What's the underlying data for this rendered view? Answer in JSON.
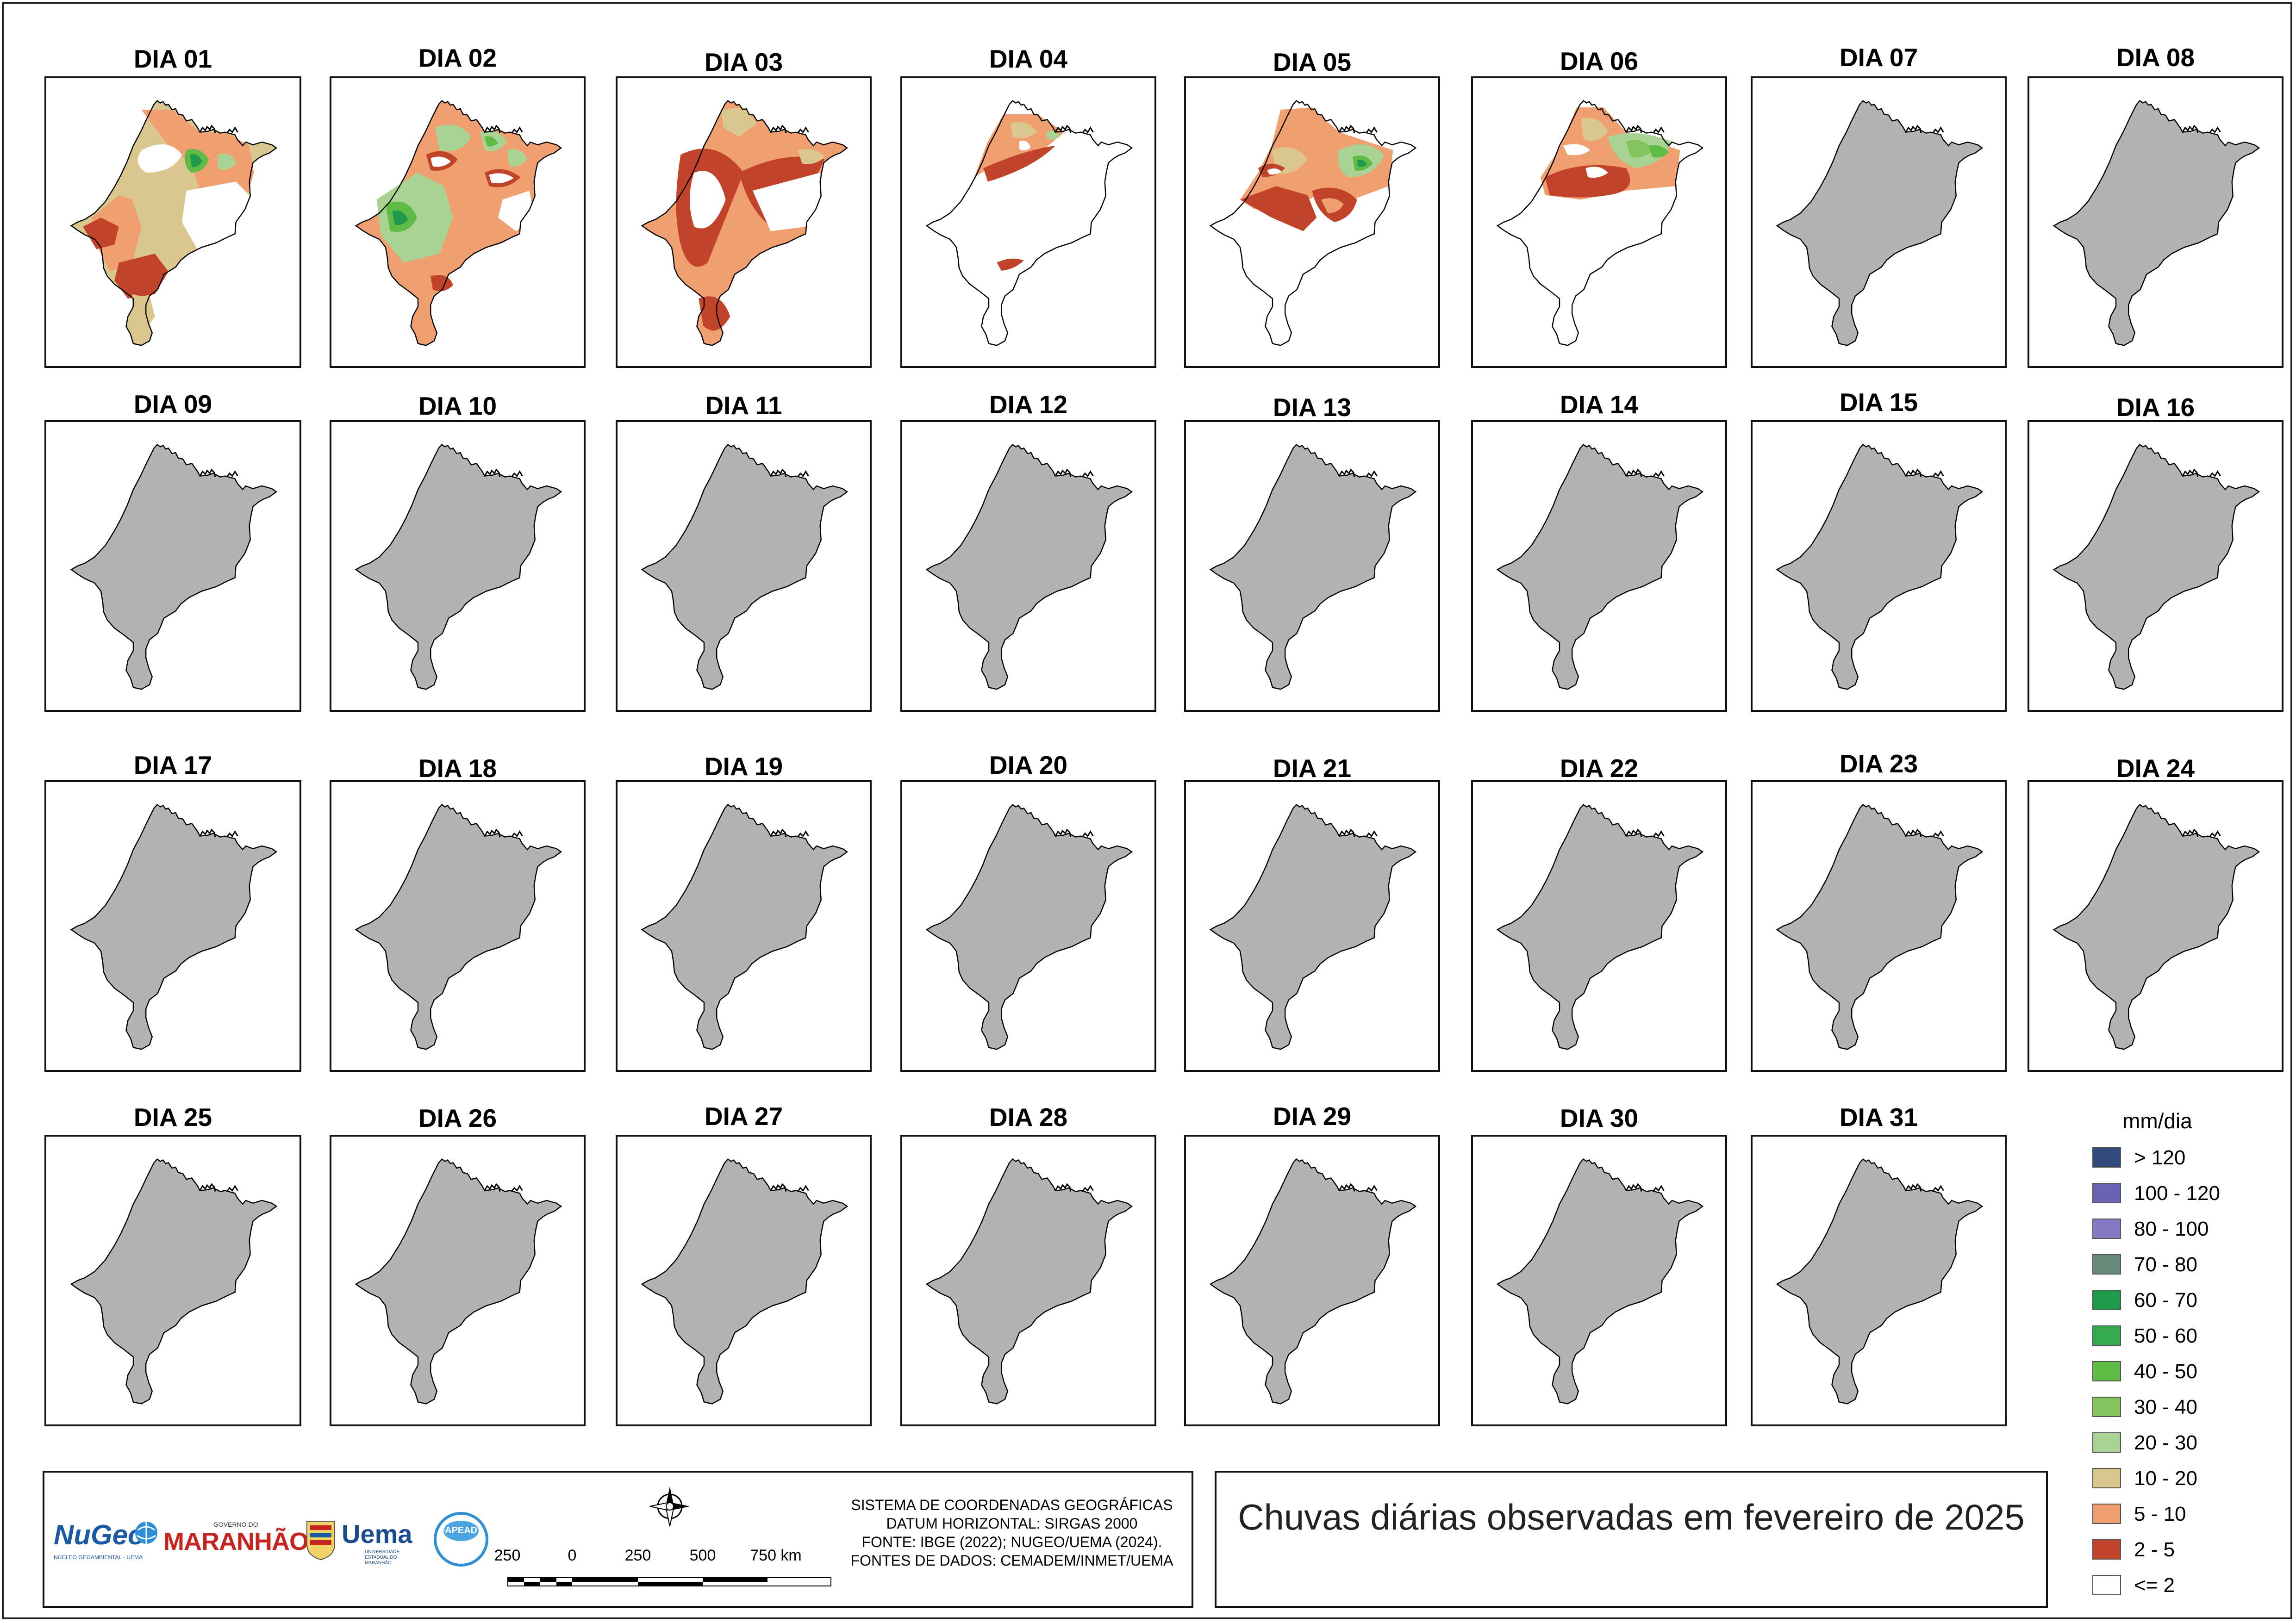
{
  "map": {
    "title": "Chuvas diárias observadas em fevereiro de 2025",
    "days": [
      {
        "label": "DIA 01",
        "rain": true
      },
      {
        "label": "DIA 02",
        "rain": true
      },
      {
        "label": "DIA 03",
        "rain": true
      },
      {
        "label": "DIA 04",
        "rain": true
      },
      {
        "label": "DIA 05",
        "rain": true
      },
      {
        "label": "DIA 06",
        "rain": true
      },
      {
        "label": "DIA 07",
        "rain": false
      },
      {
        "label": "DIA 08",
        "rain": false
      },
      {
        "label": "DIA 09",
        "rain": false
      },
      {
        "label": "DIA 10",
        "rain": false
      },
      {
        "label": "DIA 11",
        "rain": false
      },
      {
        "label": "DIA 12",
        "rain": false
      },
      {
        "label": "DIA 13",
        "rain": false
      },
      {
        "label": "DIA 14",
        "rain": false
      },
      {
        "label": "DIA 15",
        "rain": false
      },
      {
        "label": "DIA 16",
        "rain": false
      },
      {
        "label": "DIA 17",
        "rain": false
      },
      {
        "label": "DIA 18",
        "rain": false
      },
      {
        "label": "DIA 19",
        "rain": false
      },
      {
        "label": "DIA 20",
        "rain": false
      },
      {
        "label": "DIA 21",
        "rain": false
      },
      {
        "label": "DIA 22",
        "rain": false
      },
      {
        "label": "DIA 23",
        "rain": false
      },
      {
        "label": "DIA 24",
        "rain": false
      },
      {
        "label": "DIA 25",
        "rain": false
      },
      {
        "label": "DIA 26",
        "rain": false
      },
      {
        "label": "DIA 27",
        "rain": false
      },
      {
        "label": "DIA 28",
        "rain": false
      },
      {
        "label": "DIA 29",
        "rain": false
      },
      {
        "label": "DIA 30",
        "rain": false
      },
      {
        "label": "DIA 31",
        "rain": false
      }
    ]
  },
  "legend": {
    "title": "mm/dia",
    "items": [
      {
        "label": "> 120",
        "color": "#2f4a7d"
      },
      {
        "label": "100 - 120",
        "color": "#6a62b3"
      },
      {
        "label": "80 - 100",
        "color": "#8479c2"
      },
      {
        "label": "70 - 80",
        "color": "#6b8a7e"
      },
      {
        "label": "60 - 70",
        "color": "#1f9a4a"
      },
      {
        "label": "50 - 60",
        "color": "#34ad4e"
      },
      {
        "label": "40 - 50",
        "color": "#5fbb45"
      },
      {
        "label": "30 - 40",
        "color": "#86c45e"
      },
      {
        "label": "20 - 30",
        "color": "#a9d393"
      },
      {
        "label": "10 - 20",
        "color": "#d9c78e"
      },
      {
        "label": "5 - 10",
        "color": "#f0a070"
      },
      {
        "label": "2 - 5",
        "color": "#c1442a"
      },
      {
        "label": "<= 2",
        "color": "#ffffff"
      }
    ]
  },
  "footer": {
    "logos": {
      "nugeo": "NuGeo",
      "nugeo_sub": "NÚCLEO GEOAMBIENTAL - UEMA",
      "governo": "GOVERNO DO",
      "maranhao": "MARANHÃO",
      "uema": "Uema",
      "uema_sub": "UNIVERSIDADE ESTADUAL DO MARANHÃO",
      "fapead": "FAPEAD"
    },
    "datum_lines": [
      "SISTEMA DE COORDENADAS GEOGRÁFICAS",
      "DATUM HORIZONTAL: SIRGAS 2000",
      "FONTE: IBGE (2022); NUGEO/UEMA (2024).",
      "FONTES DE DADOS: CEMADEM/INMET/UEMA"
    ],
    "scale_labels": [
      "250",
      "0",
      "250",
      "500",
      "750 km"
    ],
    "compass_letters": {
      "n": "N"
    }
  },
  "colors": {
    "no_data_fill": "#b3b3b3",
    "outline": "#000000"
  }
}
